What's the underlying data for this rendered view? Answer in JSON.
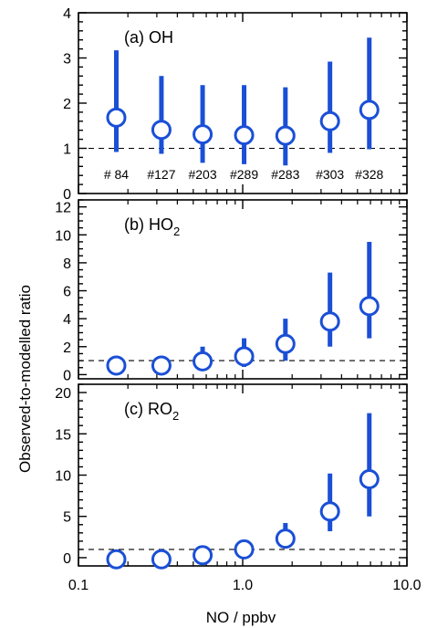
{
  "chart_data": {
    "type": "scatter",
    "x_scale": "log",
    "xlim": [
      0.1,
      10.0
    ],
    "x_ticks": [
      0.1,
      1.0,
      10.0
    ],
    "x_tick_labels": [
      "0.1",
      "1.0",
      "10.0"
    ],
    "xlabel": "NO / ppbv",
    "ylabel": "Observed-to-modelled ratio",
    "marker_color": "#1a4fd6",
    "reference_line": 1,
    "x": [
      0.17,
      0.32,
      0.57,
      1.02,
      1.82,
      3.4,
      5.9
    ],
    "panels": [
      {
        "label": "(a) OH",
        "label_main": "(a) OH",
        "label_sub": "",
        "ylim": [
          0,
          4
        ],
        "y_ticks": [
          0,
          1,
          2,
          3,
          4
        ],
        "y_tick_labels": [
          "0",
          "1",
          "2",
          "3",
          "4"
        ],
        "values": [
          1.68,
          1.41,
          1.31,
          1.29,
          1.28,
          1.6,
          1.85
        ],
        "lower": [
          0.92,
          0.88,
          0.68,
          0.65,
          0.62,
          0.9,
          0.98
        ],
        "upper": [
          3.17,
          2.6,
          2.4,
          2.4,
          2.35,
          2.92,
          3.45
        ],
        "counts": [
          "# 84",
          "#127",
          "#203",
          "#289",
          "#283",
          "#303",
          "#328"
        ]
      },
      {
        "label": "(b) HO2",
        "label_main": "(b) HO",
        "label_sub": "2",
        "ylim": [
          -0.3,
          12.5
        ],
        "y_ticks": [
          0,
          2,
          4,
          6,
          8,
          10,
          12
        ],
        "y_tick_labels": [
          "0",
          "2",
          "4",
          "6",
          "8",
          "10",
          "12"
        ],
        "values": [
          0.65,
          0.65,
          0.95,
          1.3,
          2.2,
          3.8,
          4.9
        ],
        "lower": [
          0.2,
          0.2,
          0.3,
          0.55,
          1.0,
          2.0,
          2.6
        ],
        "upper": [
          1.35,
          1.35,
          2.0,
          2.6,
          4.0,
          7.3,
          9.5
        ]
      },
      {
        "label": "(c) RO2",
        "label_main": "(c) RO",
        "label_sub": "2",
        "ylim": [
          -1,
          21
        ],
        "y_ticks": [
          0,
          5,
          10,
          15,
          20
        ],
        "y_tick_labels": [
          "0",
          "5",
          "10",
          "15",
          "20"
        ],
        "values": [
          -0.2,
          -0.2,
          0.3,
          1.0,
          2.3,
          5.6,
          9.5
        ],
        "lower": [
          -0.5,
          -0.5,
          -0.3,
          0.2,
          1.2,
          3.2,
          5.0
        ],
        "upper": [
          0.3,
          0.3,
          1.0,
          2.0,
          4.2,
          10.2,
          17.5
        ]
      }
    ]
  }
}
